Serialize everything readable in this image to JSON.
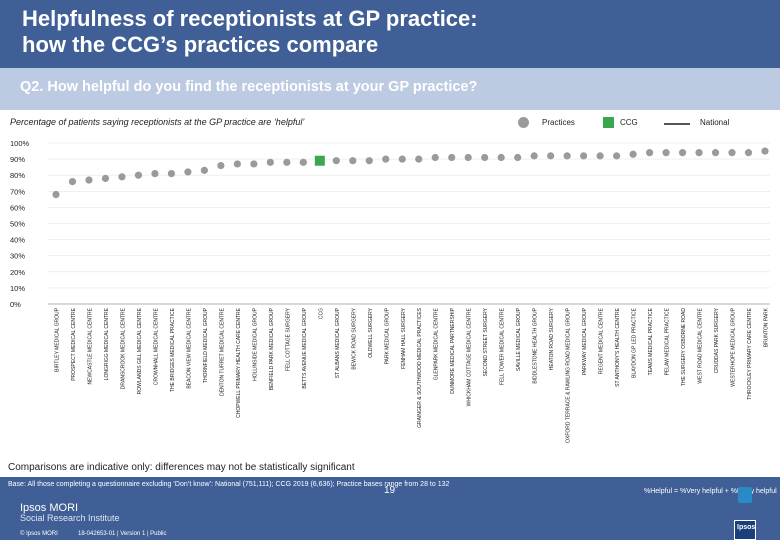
{
  "header": {
    "title_line1": "Helpfulness of receptionists at GP practice:",
    "title_line2": "how the CCG’s practices compare"
  },
  "question": "Q2. How helpful do you find the receptionists at your GP practice?",
  "legend": {
    "practices": "Practices",
    "ccg": "CCG",
    "national": "National",
    "colors": {
      "practices": "#9a9a9a",
      "ccg": "#3aa64f",
      "national": "#555555"
    }
  },
  "chart_data": {
    "type": "scatter",
    "title": "Percentage of patients saying receptionists at the GP practice are ‘helpful’",
    "yticks": [
      "0%",
      "10%",
      "20%",
      "30%",
      "40%",
      "50%",
      "60%",
      "70%",
      "80%",
      "90%",
      "100%"
    ],
    "ylim": [
      0,
      100
    ],
    "categories": [
      "BIRTLEY MEDICAL GROUP",
      "PROSPECT MEDICAL CENTRE",
      "NEWCASTLE MEDICAL CENTRE",
      "LONGRIGG MEDICAL CENTRE",
      "DRANSCROOK MEDICAL CENTRE",
      "ROWLANDS GILL MEDICAL CENTRE",
      "CROWNHALL MEDICAL CENTRE",
      "THE BRIDGES MEDICAL PRACTICE",
      "BEACON VIEW MEDICAL CENTRE",
      "THORNFIELD MEDICAL GROUP",
      "DENTON TURRET MEDICAL CENTRE",
      "CHOPWELL PRIMARY HEALTH CARE CENTRE",
      "HOLLINSIDE MEDICAL GROUP",
      "BENFIELD PARK MEDICAL GROUP",
      "FELL COTTAGE SURGERY",
      "BETTS AVENUE MEDICAL GROUP",
      "CCG",
      "ST ALBANS MEDICAL GROUP",
      "BEWICK ROAD SURGERY",
      "OLDWELL SURGERY",
      "PARK MEDICAL GROUP",
      "FENHAM HALL SURGERY",
      "GRAINGER & SOUTHWOOD MEDICAL PRACTICES",
      "GLENPARK MEDICAL CENTRE",
      "DUNMORE MEDICAL PARTNERSHIP",
      "WHICKHAM COTTAGE MEDICAL CENTRE",
      "SECOND STREET SURGERY",
      "FELL TOWER MEDICAL CENTRE",
      "SAVILLE MEDICAL GROUP",
      "BIDDLESTONE HEALTH GROUP",
      "HEATON ROAD SURGERY",
      "OXFORD TERRACE & RAWLING ROAD MEDICAL GROUP",
      "PARKWAY MEDICAL GROUP",
      "REGENT MEDICAL CENTRE",
      "ST ANTHONY'S HEALTH CENTRE",
      "BLAYDON GP LED PRACTICE",
      "TEAMS MEDICAL PRACTICE",
      "PELAW MEDICAL PRACTICE",
      "THE SURGERY OSBORNE ROAD",
      "WEST ROAD MEDICAL CENTRE",
      "CRUDDAS PARK SURGERY",
      "WESTERHOPE MEDICAL GROUP",
      "THROCKLEY PRIMARY CARE CENTRE",
      "BRUNTON PARK"
    ],
    "values": [
      68,
      76,
      77,
      78,
      79,
      80,
      81,
      81,
      82,
      83,
      86,
      87,
      87,
      88,
      88,
      88,
      89,
      89,
      89,
      89,
      90,
      90,
      90,
      91,
      91,
      91,
      91,
      91,
      91,
      92,
      92,
      92,
      92,
      92,
      92,
      93,
      94,
      94,
      94,
      94,
      94,
      94,
      94,
      95
    ],
    "highlight": "CCG"
  },
  "footnote": "Comparisons are indicative only: differences may not be statistically significant",
  "footer": {
    "base": "Base: All those completing a questionnaire excluding ‘Don’t know’: National (751,111); CCG 2019 (6,636); Practice bases range from 28 to 132",
    "helpful_def": "%Helpful = %Very helpful + %Fairly helpful",
    "logo_main": "Ipsos MORI",
    "logo_sub": "Social Research Institute",
    "copyright": "© Ipsos MORI",
    "job": "18-042653-01 | Version 1 | Public",
    "page": "19",
    "corner_logo": "Ipsos"
  }
}
